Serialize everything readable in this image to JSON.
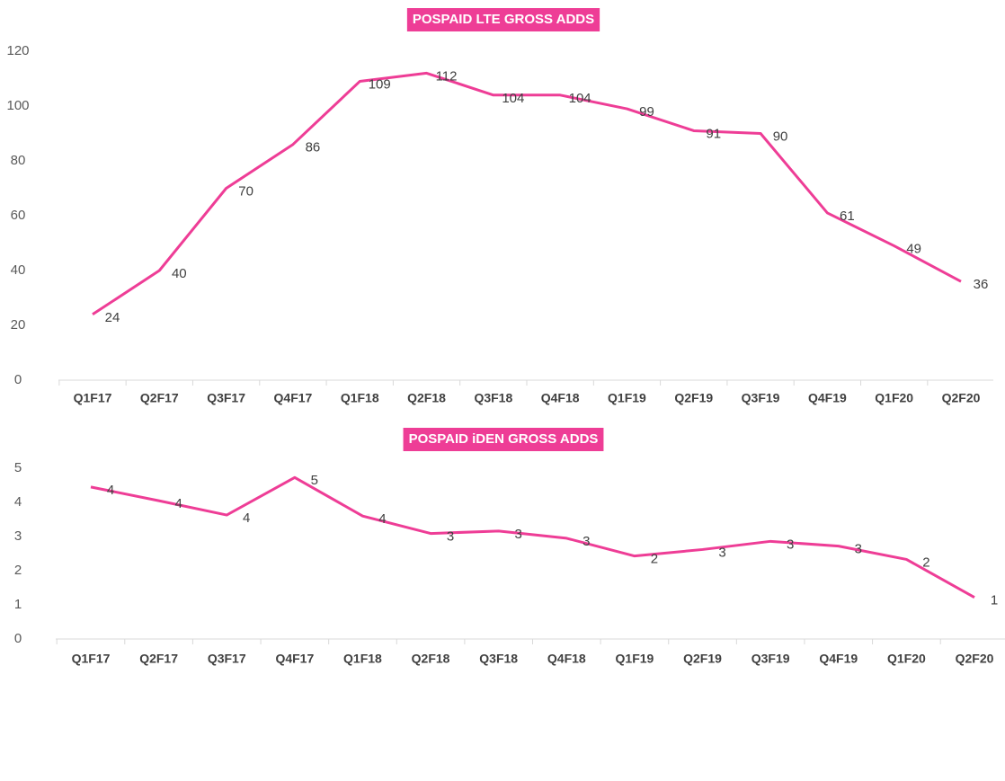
{
  "chart_data": [
    {
      "type": "line",
      "title": "POSPAID LTE GROSS ADDS",
      "categories": [
        "Q1F17",
        "Q2F17",
        "Q3F17",
        "Q4F17",
        "Q1F18",
        "Q2F18",
        "Q3F18",
        "Q4F18",
        "Q1F19",
        "Q2F19",
        "Q3F19",
        "Q4F19",
        "Q1F20",
        "Q2F20"
      ],
      "values": [
        24,
        40,
        70,
        86,
        109,
        112,
        104,
        104,
        99,
        91,
        90,
        61,
        49,
        36
      ],
      "color": "#ee3d96",
      "ylim": [
        0,
        120
      ],
      "yticks": [
        0,
        20,
        40,
        60,
        80,
        100,
        120
      ]
    },
    {
      "type": "line",
      "title": "POSPAID iDEN GROSS ADDS",
      "categories": [
        "Q1F17",
        "Q2F17",
        "Q3F17",
        "Q4F17",
        "Q1F18",
        "Q2F18",
        "Q3F18",
        "Q4F18",
        "Q1F19",
        "Q2F19",
        "Q3F19",
        "Q4F19",
        "Q1F20",
        "Q2F20"
      ],
      "values": [
        4.45,
        4.05,
        3.63,
        4.73,
        3.6,
        3.09,
        3.16,
        2.95,
        2.43,
        2.62,
        2.86,
        2.72,
        2.33,
        1.22
      ],
      "value_labels": [
        "4",
        "4",
        "4",
        "5",
        "4",
        "3",
        "3",
        "3",
        "2",
        "3",
        "3",
        "3",
        "2",
        "1"
      ],
      "color": "#ee3d96",
      "ylim": [
        0,
        5
      ],
      "yticks": [
        0,
        1,
        2,
        3,
        4,
        5
      ]
    }
  ]
}
